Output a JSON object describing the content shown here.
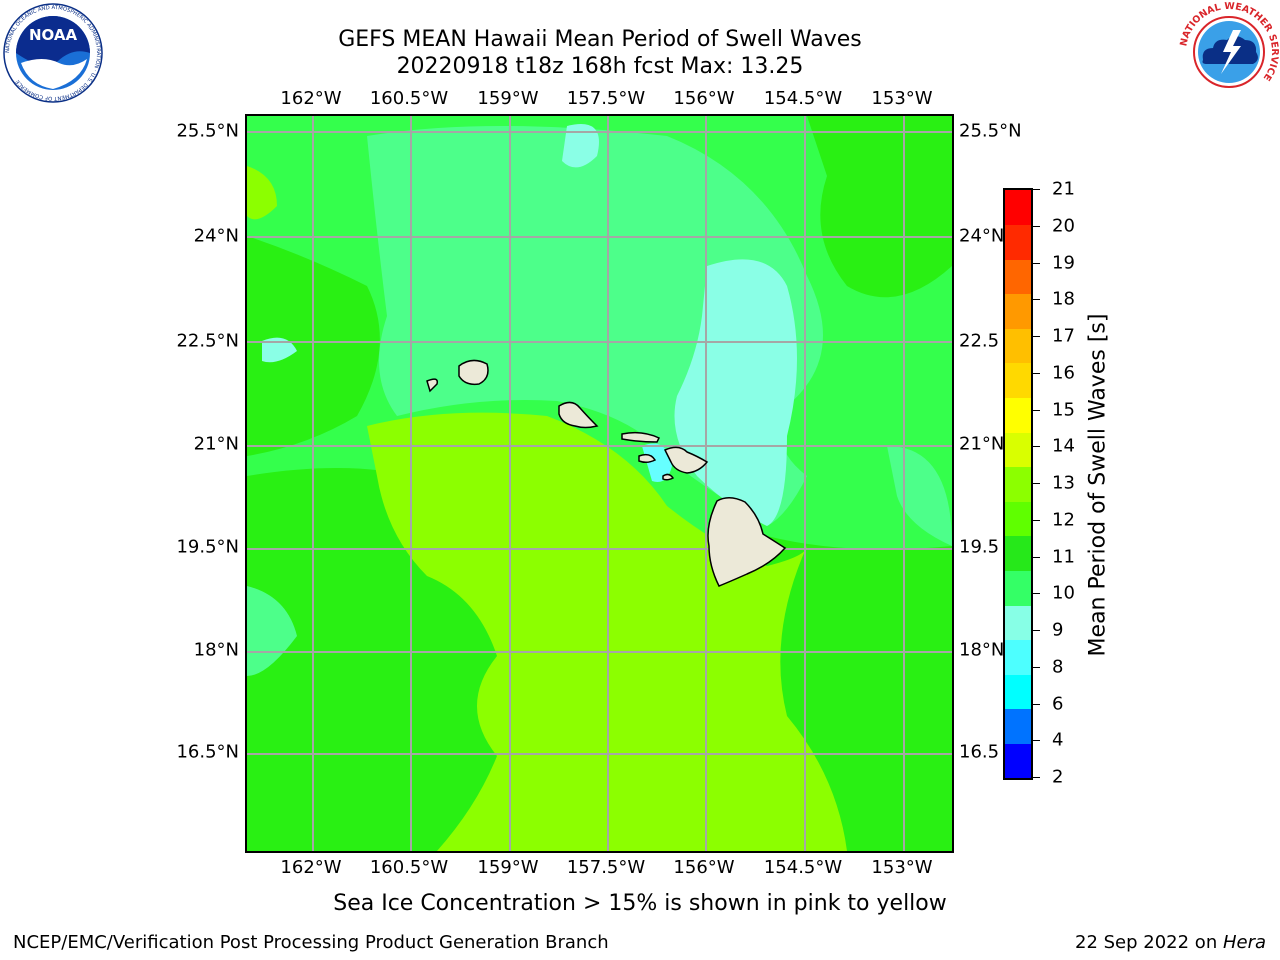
{
  "header": {
    "title_line1": "GEFS MEAN Hawaii Mean Period of Swell Waves",
    "title_line2": "20220918 t18z 168h fcst   Max: 13.25"
  },
  "logos": {
    "noaa_text": "NOAA",
    "noaa_ring_text": "NATIONAL OCEANIC AND ATMOSPHERIC ADMINISTRATION · U.S. DEPARTMENT OF COMMERCE",
    "nws_ring_text": "NATIONAL WEATHER SERVICE"
  },
  "map": {
    "lon_labels": [
      "162°W",
      "160.5°W",
      "159°W",
      "157.5°W",
      "156°W",
      "154.5°W",
      "153°W"
    ],
    "lat_labels_left": [
      "25.5°N",
      "24°N",
      "22.5°N",
      "21°N",
      "19.5°N",
      "18°N",
      "16.5°N"
    ],
    "lat_labels_right": [
      "25.5°N",
      "24°N",
      "22.5",
      "21°N",
      "19.5",
      "18°N",
      "16.5"
    ],
    "colors": {
      "ocean_11_12": "#34ff4c",
      "ocean_12_13": "#29f013",
      "ocean_13_14": "#8cff00",
      "ocean_10_11": "#4dff8a",
      "ocean_9_10": "#8affe6",
      "ocean_8_9": "#66ffff",
      "land": "#ece9d8",
      "gridline": "#a6a6a6"
    }
  },
  "colorbar": {
    "title": "Mean Period of Swell Waves [s]",
    "levels": [
      "2",
      "4",
      "6",
      "8",
      "9",
      "10",
      "11",
      "12",
      "13",
      "14",
      "15",
      "16",
      "17",
      "18",
      "19",
      "20",
      "21"
    ],
    "colors": [
      "#0000ff",
      "#0073ff",
      "#00ffff",
      "#4dffff",
      "#87ffe6",
      "#34ff66",
      "#26e81a",
      "#5fff00",
      "#8cff00",
      "#d9ff00",
      "#ffff00",
      "#ffd900",
      "#ffbf00",
      "#ff9900",
      "#ff6600",
      "#ff2a00",
      "#ff0000"
    ]
  },
  "footer": {
    "note": "Sea Ice Concentration > 15% is shown in pink to yellow",
    "left": "NCEP/EMC/Verification Post Processing Product Generation Branch",
    "right_prefix": "22 Sep 2022 on ",
    "right_machine": "Hera"
  }
}
